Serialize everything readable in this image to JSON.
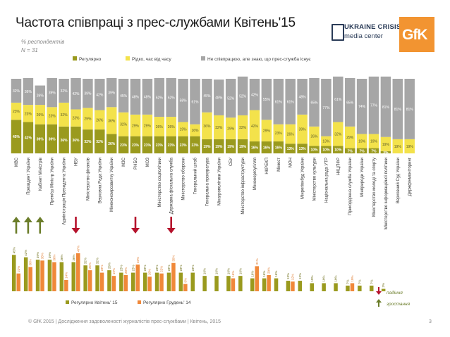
{
  "title": "Частота співпраці з прес-службами Квітень'15",
  "subtitle": "% респондентів",
  "base": "N = 31",
  "logo_ukraine": {
    "top": "UKRAINE CRISIS",
    "bottom": "media center"
  },
  "logo_gfk": "GfK",
  "footer": "© GfK 2015 | Дослідження задоволеності журналістів прес-службами | Квітень, 2015",
  "page_number": "3",
  "indicator_legend": {
    "down": "падіння",
    "up": "зростання"
  },
  "colors": {
    "regular": "#9a9a1e",
    "rare": "#f3e24b",
    "none": "#a6a6a6",
    "april": "#9a9a1e",
    "december": "#f0883a",
    "arrow_up": "#6b7d2a",
    "arrow_down": "#b5122c"
  },
  "chart_data": [
    {
      "type": "bar",
      "stacked": true,
      "legend": [
        "Регулярно",
        "Рідко, час від часу",
        "Не співпрацюю, але знаю, що прес-служба існує"
      ],
      "legend_position": "top",
      "categories": [
        "МВС",
        "Президент України",
        "Кабінет Міністрів",
        "Прем'єр Міністр України",
        "Адміністрація Президента України",
        "НБУ",
        "Міністерство фінансів",
        "Верховна Рада України",
        "Мінекономрозвитку України",
        "МЗС",
        "РНБО",
        "МОЗ",
        "Міністерство соцполітики",
        "Державна фіскальна служба",
        "Міністерство оборони",
        "Генеральний штаб",
        "Генеральна прокуратура",
        "Мінагрополітики України",
        "СБУ",
        "Міністерство інфраструктури",
        "Мінюнергоугілля",
        "НКРЕКП",
        "Мінюст",
        "МОН",
        "Мінрегіонбуд України",
        "Міністерство культури",
        "Національна рада УТР",
        "НКЦПФР",
        "Прикордонна служба України",
        "Мінприроди України",
        "Міністерство молоді та спорту",
        "Міністерство інформаційної політики",
        "Верховний Суд України",
        "Держфінмоніторинг"
      ],
      "series": [
        {
          "name": "Регулярно",
          "values": [
            45,
            42,
            39,
            39,
            36,
            36,
            32,
            32,
            26,
            23,
            23,
            23,
            23,
            23,
            23,
            23,
            19,
            19,
            19,
            19,
            16,
            16,
            16,
            13,
            13,
            10,
            10,
            10,
            7,
            7,
            7,
            3,
            0,
            0
          ]
        },
        {
          "name": "Рідко, час від часу",
          "values": [
            23,
            23,
            26,
            23,
            32,
            23,
            29,
            26,
            36,
            32,
            29,
            29,
            26,
            26,
            19,
            16,
            36,
            32,
            29,
            32,
            42,
            29,
            23,
            26,
            39,
            26,
            13,
            32,
            29,
            19,
            19,
            19,
            19,
            19
          ]
        },
        {
          "name": "Не співпрацюю, але знаю, що прес-служба існує",
          "values": [
            32,
            36,
            26,
            39,
            32,
            42,
            39,
            42,
            39,
            45,
            48,
            48,
            52,
            52,
            58,
            61,
            45,
            48,
            52,
            52,
            42,
            55,
            61,
            61,
            48,
            65,
            77,
            61,
            65,
            74,
            77,
            81,
            81,
            81
          ]
        }
      ],
      "ylim": [
        0,
        100
      ]
    },
    {
      "type": "bar",
      "legend": [
        "Регулярно Квітень' 15",
        "Регулярно Грудень' 14"
      ],
      "legend_position": "bottom",
      "series": [
        {
          "name": "Регулярно Квітень' 15",
          "values": [
            45,
            42,
            39,
            39,
            36,
            36,
            32,
            32,
            26,
            23,
            23,
            23,
            23,
            23,
            23,
            23,
            19,
            19,
            19,
            19,
            16,
            16,
            16,
            13,
            13,
            10,
            10,
            10,
            7,
            7,
            7,
            3,
            0,
            0
          ]
        },
        {
          "name": "Регулярно Грудень' 14",
          "values": [
            22,
            30,
            38,
            36,
            14,
            47,
            26,
            23,
            19,
            20,
            33,
            18,
            22,
            35,
            9,
            0,
            0,
            0,
            16,
            0,
            31,
            20,
            0,
            12,
            0,
            0,
            0,
            0,
            10,
            0,
            0,
            0,
            0,
            0
          ]
        }
      ],
      "indicators": [
        "up",
        "up",
        "up",
        "",
        "",
        "down",
        "",
        "",
        "",
        "",
        "down",
        "",
        "",
        "down",
        "",
        "",
        "",
        "",
        "",
        "",
        "",
        "",
        "",
        "",
        "",
        "",
        "",
        "",
        "",
        "",
        "",
        "",
        "",
        ""
      ],
      "ylim": [
        0,
        50
      ]
    }
  ]
}
